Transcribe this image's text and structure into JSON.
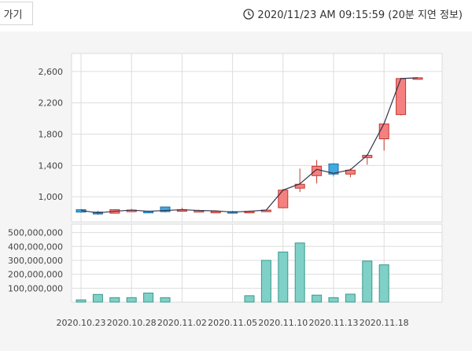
{
  "header": {
    "tab_label": "가기",
    "timestamp": "2020/11/23 AM 09:15:59 (20분 지연 정보)",
    "clock_icon": "clock-icon"
  },
  "colors": {
    "up_fill": "#f58080",
    "up_stroke": "#c0392b",
    "down_fill": "#3fa9e0",
    "down_stroke": "#1f6fa8",
    "volume_fill": "#7fd0c6",
    "volume_stroke": "#3a9a8e",
    "ma_line": "#33334d",
    "grid": "#dddddd"
  },
  "chart_data": {
    "type": "candlestick",
    "x_tick_labels": [
      "2020.10.23",
      "2020.10.28",
      "2020.11.02",
      "2020.11.05",
      "2020.11.10",
      "2020.11.13",
      "2020.11.18"
    ],
    "x_tick_index": [
      0,
      3,
      6,
      9,
      12,
      15,
      18
    ],
    "price_axis": {
      "ticks": [
        "2,600",
        "2,200",
        "1,800",
        "1,400",
        "1,000"
      ],
      "tick_values": [
        2600,
        2200,
        1800,
        1400,
        1000
      ],
      "range": [
        680,
        2830
      ]
    },
    "volume_axis": {
      "ticks": [
        "500,000,000",
        "400,000,000",
        "300,000,000",
        "200,000,000",
        "100,000,000"
      ],
      "tick_values": [
        500000000,
        400000000,
        300000000,
        200000000,
        100000000
      ],
      "range": [
        0,
        560000000
      ]
    },
    "candles": [
      {
        "o": 835,
        "h": 845,
        "l": 795,
        "c": 805
      },
      {
        "o": 805,
        "h": 820,
        "l": 770,
        "c": 780
      },
      {
        "o": 790,
        "h": 840,
        "l": 785,
        "c": 835
      },
      {
        "o": 830,
        "h": 845,
        "l": 815,
        "c": 830
      },
      {
        "o": 815,
        "h": 825,
        "l": 805,
        "c": 810
      },
      {
        "o": 870,
        "h": 875,
        "l": 800,
        "c": 810
      },
      {
        "o": 820,
        "h": 860,
        "l": 815,
        "c": 835
      },
      {
        "o": 825,
        "h": 835,
        "l": 815,
        "c": 825
      },
      {
        "o": 815,
        "h": 825,
        "l": 805,
        "c": 815
      },
      {
        "o": 810,
        "h": 820,
        "l": 795,
        "c": 805
      },
      {
        "o": 810,
        "h": 825,
        "l": 805,
        "c": 815
      },
      {
        "o": 815,
        "h": 835,
        "l": 810,
        "c": 830
      },
      {
        "o": 860,
        "h": 1100,
        "l": 855,
        "c": 1085
      },
      {
        "o": 1110,
        "h": 1360,
        "l": 1060,
        "c": 1160
      },
      {
        "o": 1270,
        "h": 1470,
        "l": 1170,
        "c": 1390
      },
      {
        "o": 1420,
        "h": 1430,
        "l": 1260,
        "c": 1290
      },
      {
        "o": 1290,
        "h": 1360,
        "l": 1250,
        "c": 1340
      },
      {
        "o": 1500,
        "h": 1540,
        "l": 1410,
        "c": 1530
      },
      {
        "o": 1740,
        "h": 1940,
        "l": 1590,
        "c": 1930
      },
      {
        "o": 2050,
        "h": 2520,
        "l": 2040,
        "c": 2510
      },
      {
        "o": 2515,
        "h": 2525,
        "l": 2505,
        "c": 2520
      }
    ],
    "moving_average": [
      825,
      795,
      815,
      830,
      815,
      825,
      835,
      825,
      820,
      805,
      815,
      830,
      1085,
      1165,
      1350,
      1300,
      1345,
      1530,
      1935,
      2510,
      2520
    ],
    "volume": [
      16000000,
      55000000,
      32000000,
      32000000,
      65000000,
      32000000,
      0,
      0,
      0,
      0,
      46000000,
      300000000,
      360000000,
      425000000,
      50000000,
      32000000,
      57000000,
      295000000,
      268000000,
      0,
      0
    ]
  }
}
